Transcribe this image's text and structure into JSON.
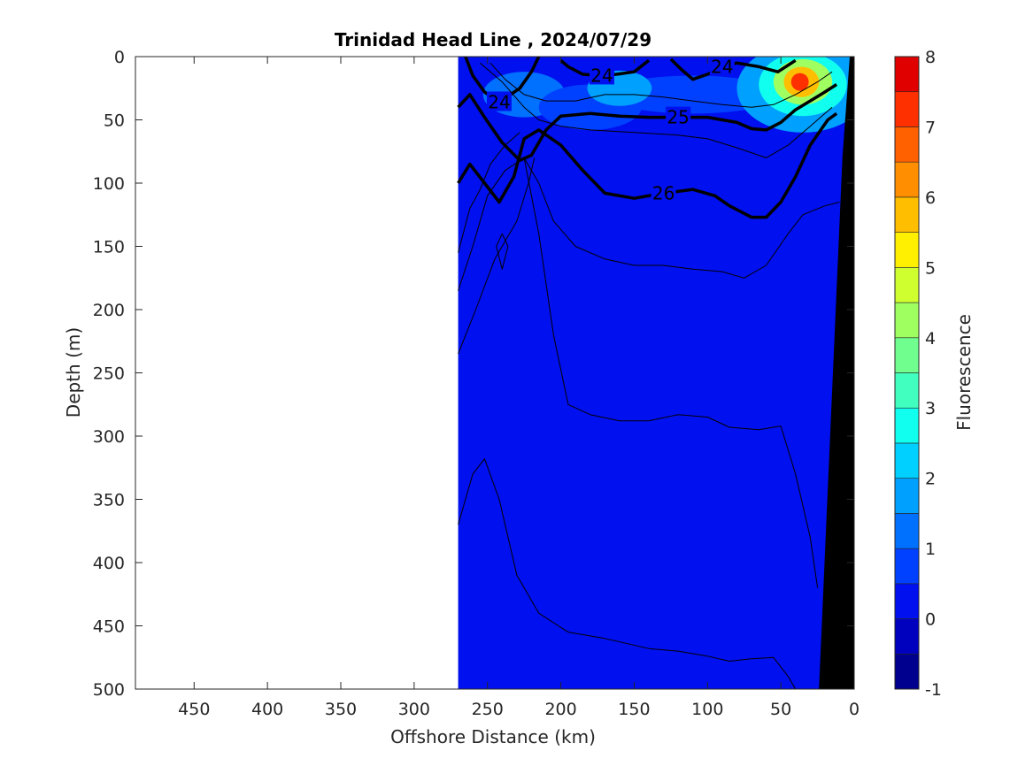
{
  "chart_data": {
    "type": "heatmap",
    "title": "Trinidad Head Line , 2024/07/29",
    "xlabel": "Offshore Distance (km)",
    "ylabel": "Depth (m)",
    "xlim": [
      490,
      0
    ],
    "ylim": [
      0,
      500
    ],
    "x_reversed": true,
    "y_reversed": true,
    "x_ticks": [
      450,
      400,
      350,
      300,
      250,
      200,
      150,
      100,
      50,
      0
    ],
    "y_ticks": [
      0,
      50,
      100,
      150,
      200,
      250,
      300,
      350,
      400,
      450,
      500
    ],
    "data_extent_km": [
      270,
      0
    ],
    "colorbar": {
      "label": "Fluorescence",
      "range": [
        -1,
        8
      ],
      "ticks": [
        -1,
        0,
        1,
        2,
        3,
        4,
        5,
        6,
        7,
        8
      ],
      "levels": [
        {
          "from": -1.0,
          "to": -0.5,
          "color": "#00008f"
        },
        {
          "from": -0.5,
          "to": 0.0,
          "color": "#0000bf"
        },
        {
          "from": 0.0,
          "to": 0.5,
          "color": "#0010ef"
        },
        {
          "from": 0.5,
          "to": 1.0,
          "color": "#0040ff"
        },
        {
          "from": 1.0,
          "to": 1.5,
          "color": "#0070ff"
        },
        {
          "from": 1.5,
          "to": 2.0,
          "color": "#00a0ff"
        },
        {
          "from": 2.0,
          "to": 2.5,
          "color": "#00d0ff"
        },
        {
          "from": 2.5,
          "to": 3.0,
          "color": "#10ffef"
        },
        {
          "from": 3.0,
          "to": 3.5,
          "color": "#40ffbf"
        },
        {
          "from": 3.5,
          "to": 4.0,
          "color": "#70ff8f"
        },
        {
          "from": 4.0,
          "to": 4.5,
          "color": "#a0ff60"
        },
        {
          "from": 4.5,
          "to": 5.0,
          "color": "#d0ff30"
        },
        {
          "from": 5.0,
          "to": 5.5,
          "color": "#ffef00"
        },
        {
          "from": 5.5,
          "to": 6.0,
          "color": "#ffbf00"
        },
        {
          "from": 6.0,
          "to": 6.5,
          "color": "#ff8f00"
        },
        {
          "from": 6.5,
          "to": 7.0,
          "color": "#ff6000"
        },
        {
          "from": 7.0,
          "to": 7.5,
          "color": "#ff3000"
        },
        {
          "from": 7.5,
          "to": 8.0,
          "color": "#e00000"
        },
        {
          "from": 8.0,
          "to": 8.5,
          "color": "#af0000"
        }
      ]
    },
    "fluorescence_patches": [
      {
        "cx": 225,
        "cy": 30,
        "rx": 28,
        "ry": 18,
        "value": 1.0
      },
      {
        "cx": 180,
        "cy": 40,
        "rx": 35,
        "ry": 18,
        "value": 0.8
      },
      {
        "cx": 110,
        "cy": 30,
        "rx": 60,
        "ry": 15,
        "value": 0.7
      },
      {
        "cx": 160,
        "cy": 25,
        "rx": 22,
        "ry": 14,
        "value": 1.5
      },
      {
        "cx": 35,
        "cy": 25,
        "rx": 45,
        "ry": 35,
        "value": 1.5
      },
      {
        "cx": 35,
        "cy": 22,
        "rx": 30,
        "ry": 25,
        "value": 2.5
      },
      {
        "cx": 35,
        "cy": 20,
        "rx": 20,
        "ry": 18,
        "value": 4.0
      },
      {
        "cx": 36,
        "cy": 20,
        "rx": 12,
        "ry": 12,
        "value": 5.5
      },
      {
        "cx": 37,
        "cy": 20,
        "rx": 6,
        "ry": 7,
        "value": 7.0
      }
    ],
    "density_contours": [
      {
        "label": "24",
        "points": [
          [
            265,
            0
          ],
          [
            260,
            15
          ],
          [
            252,
            28
          ],
          [
            242,
            36
          ],
          [
            228,
            25
          ],
          [
            220,
            12
          ],
          [
            215,
            0
          ]
        ]
      },
      {
        "label": "24",
        "points": [
          [
            200,
            3
          ],
          [
            195,
            8
          ],
          [
            185,
            14
          ],
          [
            172,
            15
          ],
          [
            162,
            14
          ],
          [
            150,
            12
          ],
          [
            140,
            3
          ]
        ]
      },
      {
        "label": "24",
        "points": [
          [
            125,
            2
          ],
          [
            118,
            10
          ],
          [
            110,
            18
          ],
          [
            100,
            14
          ],
          [
            90,
            8
          ],
          [
            80,
            5
          ],
          [
            65,
            8
          ],
          [
            52,
            12
          ],
          [
            40,
            3
          ]
        ]
      },
      {
        "label": "25",
        "points": [
          [
            270,
            40
          ],
          [
            262,
            30
          ],
          [
            252,
            48
          ],
          [
            240,
            68
          ],
          [
            228,
            82
          ],
          [
            220,
            78
          ],
          [
            210,
            58
          ],
          [
            200,
            47
          ],
          [
            180,
            45
          ],
          [
            160,
            47
          ],
          [
            140,
            48
          ],
          [
            120,
            48
          ],
          [
            100,
            48
          ],
          [
            90,
            50
          ],
          [
            80,
            52
          ],
          [
            70,
            57
          ],
          [
            60,
            58
          ],
          [
            50,
            52
          ],
          [
            40,
            42
          ],
          [
            30,
            35
          ],
          [
            20,
            28
          ],
          [
            12,
            22
          ]
        ]
      },
      {
        "label": "26",
        "points": [
          [
            270,
            100
          ],
          [
            262,
            85
          ],
          [
            252,
            100
          ],
          [
            242,
            115
          ],
          [
            232,
            95
          ],
          [
            225,
            65
          ],
          [
            215,
            58
          ],
          [
            200,
            70
          ],
          [
            185,
            90
          ],
          [
            170,
            108
          ],
          [
            150,
            112
          ],
          [
            130,
            108
          ],
          [
            110,
            105
          ],
          [
            95,
            110
          ],
          [
            85,
            118
          ],
          [
            70,
            127
          ],
          [
            60,
            127
          ],
          [
            50,
            115
          ],
          [
            40,
            95
          ],
          [
            30,
            70
          ],
          [
            18,
            50
          ],
          [
            12,
            45
          ]
        ]
      },
      {
        "label": "",
        "points": [
          [
            270,
            155
          ],
          [
            262,
            120
          ],
          [
            255,
            105
          ],
          [
            248,
            85
          ],
          [
            238,
            70
          ],
          [
            228,
            60
          ]
        ]
      },
      {
        "label": "",
        "points": [
          [
            240,
            140
          ],
          [
            236,
            150
          ],
          [
            240,
            168
          ],
          [
            244,
            150
          ],
          [
            240,
            140
          ]
        ]
      },
      {
        "label": "",
        "points": [
          [
            270,
            185
          ],
          [
            260,
            150
          ],
          [
            250,
            110
          ],
          [
            238,
            90
          ],
          [
            225,
            80
          ],
          [
            215,
            100
          ],
          [
            205,
            130
          ],
          [
            190,
            150
          ],
          [
            170,
            160
          ],
          [
            150,
            165
          ],
          [
            130,
            165
          ],
          [
            110,
            168
          ],
          [
            90,
            170
          ],
          [
            75,
            175
          ],
          [
            60,
            165
          ],
          [
            45,
            140
          ],
          [
            35,
            125
          ],
          [
            20,
            118
          ],
          [
            10,
            115
          ]
        ]
      },
      {
        "label": "",
        "points": [
          [
            270,
            235
          ],
          [
            258,
            200
          ],
          [
            245,
            160
          ],
          [
            230,
            130
          ],
          [
            222,
            100
          ],
          [
            218,
            80
          ]
        ]
      },
      {
        "label": "",
        "points": [
          [
            225,
            80
          ],
          [
            215,
            140
          ],
          [
            205,
            220
          ],
          [
            195,
            275
          ],
          [
            180,
            283
          ],
          [
            160,
            288
          ],
          [
            140,
            288
          ],
          [
            120,
            283
          ],
          [
            100,
            285
          ],
          [
            85,
            293
          ],
          [
            65,
            295
          ],
          [
            50,
            292
          ],
          [
            40,
            330
          ],
          [
            30,
            380
          ],
          [
            25,
            420
          ]
        ]
      },
      {
        "label": "",
        "points": [
          [
            270,
            370
          ],
          [
            260,
            330
          ],
          [
            252,
            318
          ],
          [
            242,
            350
          ],
          [
            230,
            410
          ],
          [
            215,
            440
          ],
          [
            195,
            455
          ],
          [
            170,
            460
          ],
          [
            140,
            468
          ],
          [
            120,
            470
          ],
          [
            100,
            474
          ],
          [
            85,
            478
          ],
          [
            70,
            476
          ],
          [
            55,
            475
          ],
          [
            45,
            490
          ],
          [
            40,
            500
          ]
        ]
      },
      {
        "label": "",
        "points": [
          [
            255,
            5
          ],
          [
            240,
            20
          ],
          [
            225,
            40
          ],
          [
            215,
            50
          ],
          [
            200,
            55
          ],
          [
            180,
            58
          ],
          [
            150,
            60
          ],
          [
            120,
            62
          ],
          [
            100,
            65
          ],
          [
            80,
            72
          ],
          [
            60,
            80
          ],
          [
            45,
            70
          ],
          [
            30,
            55
          ],
          [
            15,
            40
          ]
        ]
      },
      {
        "label": "",
        "points": [
          [
            248,
            5
          ],
          [
            238,
            18
          ],
          [
            225,
            30
          ],
          [
            210,
            35
          ],
          [
            190,
            35
          ],
          [
            170,
            30
          ],
          [
            150,
            30
          ],
          [
            130,
            32
          ],
          [
            110,
            35
          ],
          [
            90,
            38
          ],
          [
            70,
            40
          ],
          [
            55,
            38
          ],
          [
            40,
            30
          ],
          [
            25,
            20
          ],
          [
            15,
            12
          ]
        ]
      }
    ],
    "bottom_mask": [
      [
        24,
        500
      ],
      [
        8,
        80
      ],
      [
        3,
        0
      ],
      [
        0,
        0
      ],
      [
        0,
        500
      ]
    ]
  }
}
